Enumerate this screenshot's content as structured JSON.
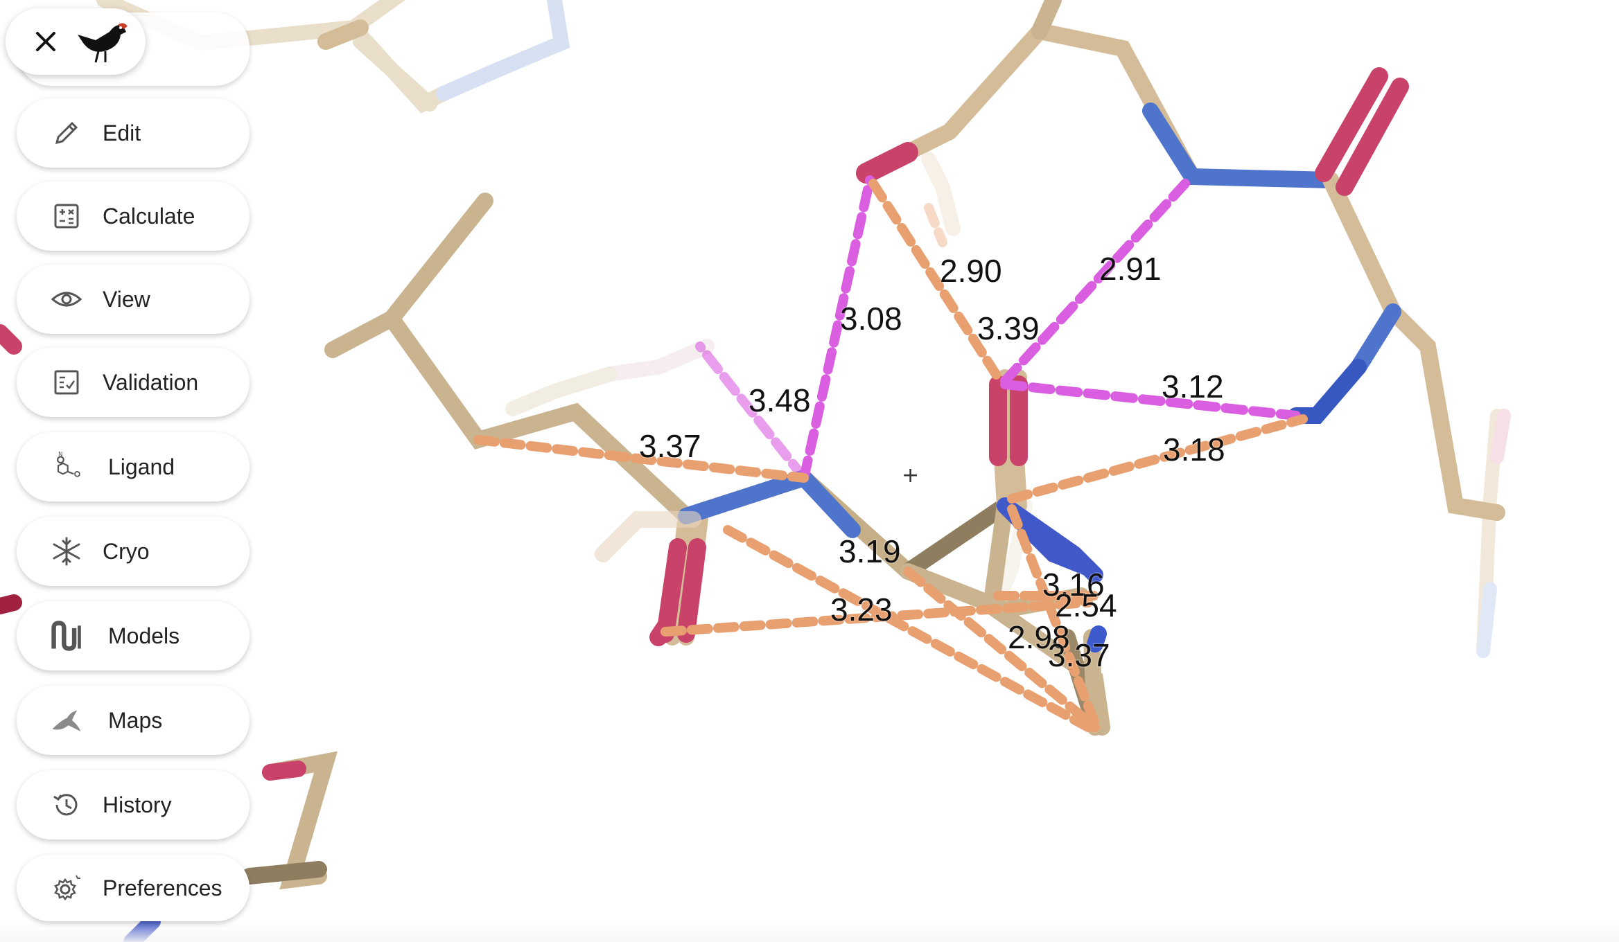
{
  "app": {
    "close_icon": "close-icon",
    "logo_icon": "bird-logo-icon"
  },
  "menu": {
    "items": [
      {
        "label": "Edit",
        "icon": "pencil-icon"
      },
      {
        "label": "Calculate",
        "icon": "calculator-icon"
      },
      {
        "label": "View",
        "icon": "eye-icon"
      },
      {
        "label": "Validation",
        "icon": "checklist-icon"
      },
      {
        "label": "Ligand",
        "icon": "ligand-molecule-icon"
      },
      {
        "label": "Cryo",
        "icon": "snowflake-icon"
      },
      {
        "label": "Models",
        "icon": "models-icon"
      },
      {
        "label": "Maps",
        "icon": "maps-icon"
      },
      {
        "label": "History",
        "icon": "history-icon"
      },
      {
        "label": "Preferences",
        "icon": "gear-icon"
      }
    ]
  },
  "viewer": {
    "center_marker": "+",
    "distances": [
      "2.90",
      "2.91",
      "3.08",
      "3.39",
      "3.48",
      "3.12",
      "3.37",
      "3.18",
      "3.19",
      "3.16",
      "2.54",
      "3.23",
      "2.98",
      "3.37"
    ],
    "colors": {
      "carbon": "#d8c4a0",
      "oxygen": "#c8426a",
      "nitrogen": "#4a6fd6",
      "hbond_magenta": "#d95ee0",
      "contact_orange": "#e8a070"
    }
  }
}
